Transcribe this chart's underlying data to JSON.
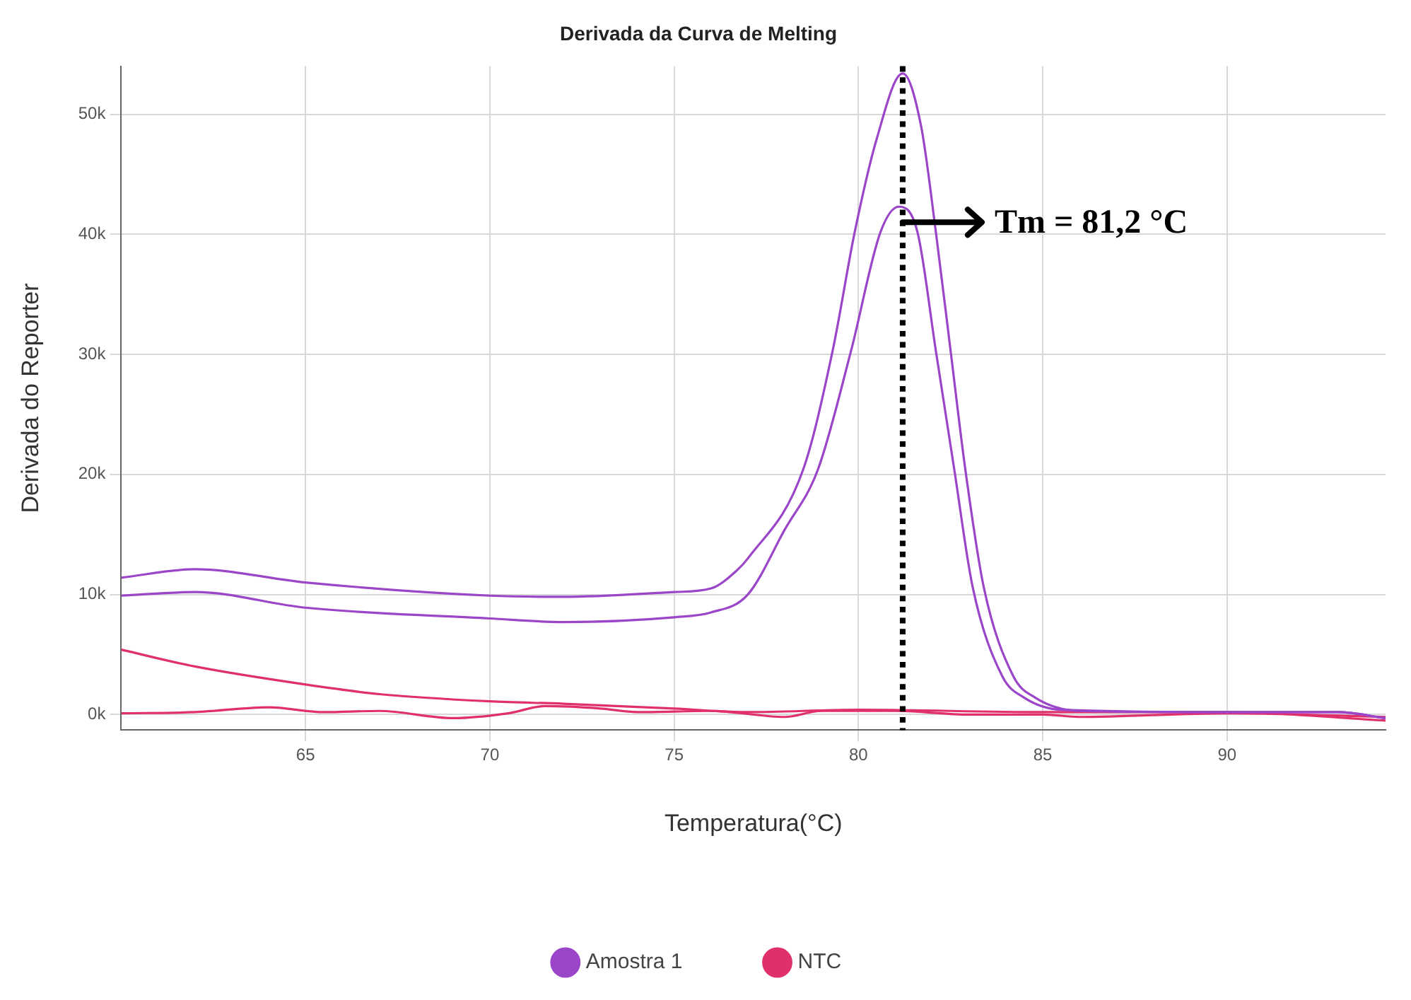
{
  "chart_data": {
    "type": "line",
    "title": "Derivada da Curva de Melting",
    "xlabel": "Temperatura(°C)",
    "ylabel": "Derivada do Reporter",
    "xlim": [
      60,
      94.3
    ],
    "xticks": [
      65,
      70,
      75,
      80,
      85,
      90
    ],
    "ylim": [
      -1300,
      54000
    ],
    "yticks": [
      {
        "value": 0,
        "label": "0k"
      },
      {
        "value": 10000,
        "label": "10k"
      },
      {
        "value": 20000,
        "label": "20k"
      },
      {
        "value": 30000,
        "label": "30k"
      },
      {
        "value": 40000,
        "label": "40k"
      },
      {
        "value": 50000,
        "label": "50k"
      }
    ],
    "grid": true,
    "legend": "bottom",
    "marker": "none",
    "series": [
      {
        "name": "Amostra 1",
        "color": "#9b45c9",
        "x": [
          60,
          62,
          65,
          70,
          72,
          75,
          76,
          76.7,
          77,
          78.5,
          79.3,
          79.9,
          80.5,
          81.2,
          81.7,
          82.1,
          82.5,
          82.9,
          83.4,
          84.2,
          84.8,
          86,
          90,
          93,
          94.3
        ],
        "values": [
          11400,
          12100,
          11000,
          9900,
          9800,
          10200,
          10500,
          12000,
          13000,
          20400,
          30300,
          40200,
          48000,
          53400,
          49000,
          40200,
          30300,
          20400,
          10600,
          3200,
          1400,
          300,
          200,
          200,
          -300
        ]
      },
      {
        "color": "#9b45c9",
        "x": [
          60,
          62,
          65,
          70,
          72,
          75,
          76,
          77,
          78,
          78.9,
          79.8,
          80.6,
          81.1,
          81.6,
          82.1,
          82.6,
          83.1,
          83.9,
          84.5,
          85.5,
          90,
          93,
          94.3
        ],
        "values": [
          9900,
          10200,
          8900,
          8000,
          7700,
          8100,
          8500,
          10000,
          15400,
          20400,
          30300,
          40200,
          42300,
          40200,
          30300,
          20400,
          10600,
          3200,
          1400,
          400,
          200,
          200,
          -300
        ]
      },
      {
        "name": "NTC",
        "color": "#e0306a",
        "x": [
          60,
          62,
          65,
          67,
          70,
          72,
          75,
          77,
          80,
          85,
          90,
          94.3
        ],
        "values": [
          5400,
          4000,
          2500,
          1700,
          1100,
          900,
          500,
          200,
          400,
          200,
          200,
          -500
        ]
      },
      {
        "color": "#e0306a",
        "x": [
          60,
          62,
          64,
          65.5,
          67,
          69,
          70.5,
          71.5,
          73,
          74,
          76,
          78,
          79,
          81,
          83,
          85,
          86,
          90,
          94.3
        ],
        "values": [
          100,
          200,
          600,
          200,
          300,
          -300,
          100,
          700,
          500,
          200,
          300,
          -200,
          300,
          300,
          0,
          0,
          -200,
          100,
          -200
        ]
      }
    ],
    "ref_lines": [
      {
        "axis": "x",
        "value": 81.2,
        "color": "#000000",
        "line_style": "dotted"
      }
    ],
    "annotations": [
      {
        "text": "Tm = 81,2 °C",
        "x": 81.2,
        "y": 41000
      }
    ]
  }
}
